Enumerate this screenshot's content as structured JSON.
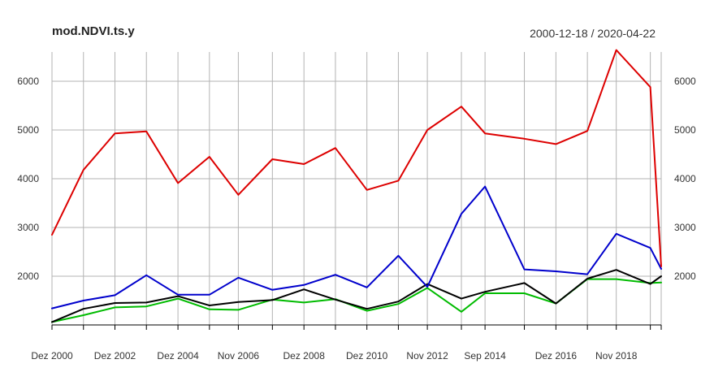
{
  "chart_data": {
    "type": "line",
    "title": "mod.NDVI.ts.y",
    "date_range": "2000-12-18 / 2020-04-22",
    "xlabel": "",
    "ylabel": "",
    "ylim": [
      1000,
      6600
    ],
    "grid": true,
    "x_tick_labels": [
      "Dez 2000",
      "Dez 2002",
      "Dez 2004",
      "Nov 2006",
      "Dez 2008",
      "Dez 2010",
      "Nov 2012",
      "Sep 2014",
      "Dez 2016",
      "Nov 2018"
    ],
    "y_ticks": [
      2000,
      3000,
      4000,
      5000,
      6000
    ],
    "x": [
      "2000-12-18",
      "2001-12-18",
      "2002-12-18",
      "2003-12-18",
      "2004-12-18",
      "2005-12-18",
      "2006-11-18",
      "2007-12-18",
      "2008-12-18",
      "2009-12-18",
      "2010-12-18",
      "2011-12-18",
      "2012-11-18",
      "2013-12-18",
      "2014-09-18",
      "2015-12-18",
      "2016-12-18",
      "2017-12-18",
      "2018-11-18",
      "2019-12-18",
      "2020-04-22"
    ],
    "series": [
      {
        "color": "#dd0000",
        "values": [
          2850,
          4180,
          4930,
          4970,
          3910,
          4450,
          3670,
          4400,
          4300,
          4630,
          3770,
          3960,
          5000,
          5480,
          4930,
          4820,
          4710,
          4980,
          6640,
          5880,
          2200
        ]
      },
      {
        "color": "#0000cc",
        "values": [
          1340,
          1500,
          1610,
          2020,
          1620,
          1620,
          1970,
          1720,
          1820,
          2030,
          1770,
          2420,
          1780,
          3280,
          3840,
          2140,
          2100,
          2040,
          2870,
          2580,
          2150
        ]
      },
      {
        "color": "#000000",
        "values": [
          1060,
          1330,
          1450,
          1460,
          1590,
          1400,
          1470,
          1510,
          1730,
          1520,
          1330,
          1480,
          1840,
          1540,
          1680,
          1860,
          1440,
          1950,
          2130,
          1840,
          2000
        ]
      },
      {
        "color": "#00bb00",
        "values": [
          1060,
          1200,
          1360,
          1380,
          1540,
          1320,
          1310,
          1520,
          1460,
          1530,
          1290,
          1430,
          1760,
          1270,
          1650,
          1650,
          1440,
          1940,
          1940,
          1860,
          1870
        ]
      }
    ]
  }
}
